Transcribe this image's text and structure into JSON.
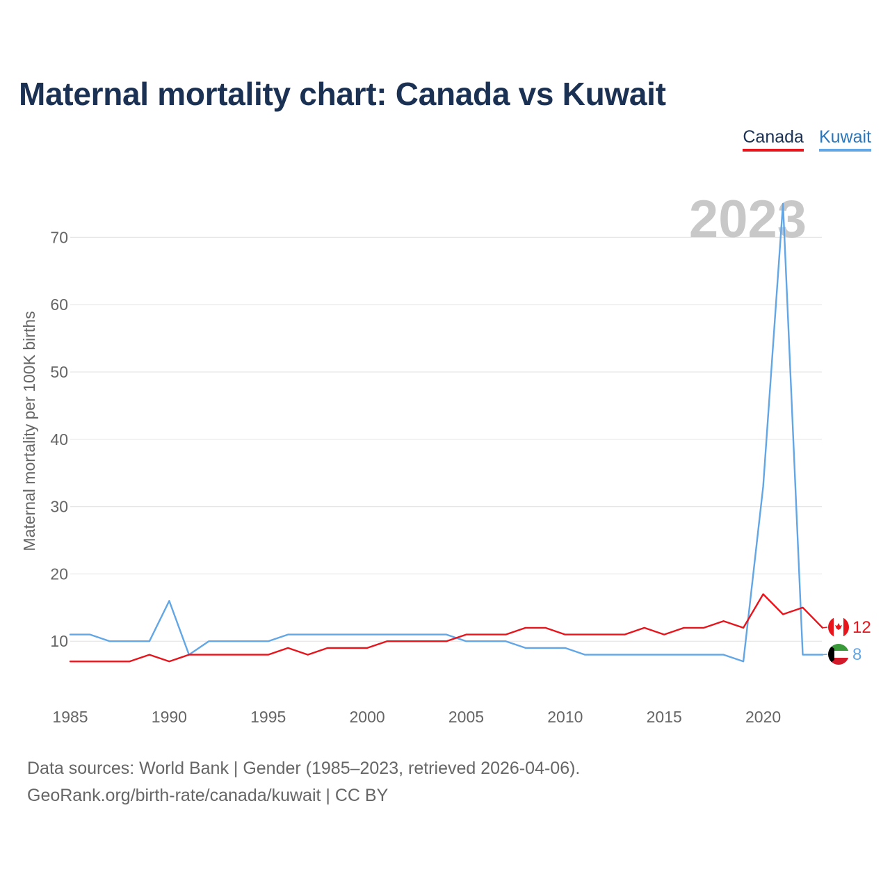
{
  "title": "Maternal mortality chart: Canada vs Kuwait",
  "legend": {
    "canada": "Canada",
    "kuwait": "Kuwait"
  },
  "colors": {
    "canada": "#e8141c",
    "kuwait": "#62a6e6",
    "title": "#1b3153",
    "grid": "#e6e6e6",
    "axis_text": "#666666",
    "year_watermark": "#c8c8c8"
  },
  "year_label": "2023",
  "source": {
    "line1": "Data sources: World Bank | Gender (1985–2023, retrieved 2026-04-06).",
    "line2": "GeoRank.org/birth-rate/canada/kuwait | CC BY"
  },
  "chart_data": {
    "type": "line",
    "title": "Maternal mortality chart: Canada vs Kuwait",
    "xlabel": "",
    "ylabel": "Maternal mortality per 100K births",
    "xlim": [
      1985,
      2023
    ],
    "ylim": [
      3,
      75
    ],
    "xticks": [
      1985,
      1990,
      1995,
      2000,
      2005,
      2010,
      2015,
      2020
    ],
    "yticks": [
      10,
      20,
      30,
      40,
      50,
      60,
      70
    ],
    "x": [
      1985,
      1986,
      1987,
      1988,
      1989,
      1990,
      1991,
      1992,
      1993,
      1994,
      1995,
      1996,
      1997,
      1998,
      1999,
      2000,
      2001,
      2002,
      2003,
      2004,
      2005,
      2006,
      2007,
      2008,
      2009,
      2010,
      2011,
      2012,
      2013,
      2014,
      2015,
      2016,
      2017,
      2018,
      2019,
      2020,
      2021,
      2022,
      2023
    ],
    "series": [
      {
        "name": "Canada",
        "color": "#e8141c",
        "end_label": "12",
        "values": [
          7,
          7,
          7,
          7,
          8,
          7,
          8,
          8,
          8,
          8,
          8,
          9,
          8,
          9,
          9,
          9,
          10,
          10,
          10,
          10,
          11,
          11,
          11,
          12,
          12,
          11,
          11,
          11,
          11,
          12,
          11,
          12,
          12,
          13,
          12,
          17,
          14,
          15,
          12
        ]
      },
      {
        "name": "Kuwait",
        "color": "#62a6e6",
        "end_label": "8",
        "values": [
          11,
          11,
          10,
          10,
          10,
          16,
          8,
          10,
          10,
          10,
          10,
          11,
          11,
          11,
          11,
          11,
          11,
          11,
          11,
          11,
          10,
          10,
          10,
          9,
          9,
          9,
          8,
          8,
          8,
          8,
          8,
          8,
          8,
          8,
          7,
          33,
          75,
          8,
          8
        ]
      }
    ]
  }
}
